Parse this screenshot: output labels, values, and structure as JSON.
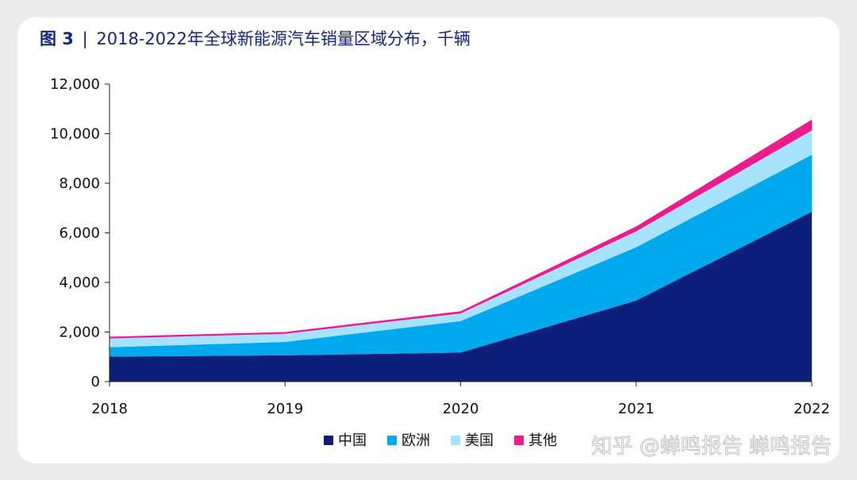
{
  "title": {
    "figure_label": "图 3",
    "separator": "|",
    "text": "2018-2022年全球新能源汽车销量区域分布，千辆"
  },
  "chart_data": {
    "type": "area",
    "stacked": true,
    "x": [
      "2018",
      "2019",
      "2020",
      "2021",
      "2022"
    ],
    "ylim": [
      0,
      12000
    ],
    "yticks": [
      0,
      2000,
      4000,
      6000,
      8000,
      10000,
      12000
    ],
    "ytick_labels": [
      "0",
      "2,000",
      "4,000",
      "6,000",
      "8,000",
      "10,000",
      "12,000"
    ],
    "series": [
      {
        "name": "中国",
        "color": "#0c1f7a",
        "values": [
          1010,
          1060,
          1170,
          3270,
          6850
        ]
      },
      {
        "name": "欧洲",
        "color": "#00a9ee",
        "values": [
          380,
          540,
          1270,
          2150,
          2300
        ]
      },
      {
        "name": "美国",
        "color": "#a6e3fb",
        "values": [
          350,
          330,
          310,
          640,
          980
        ]
      },
      {
        "name": "其他",
        "color": "#ec1c8c",
        "values": [
          70,
          70,
          90,
          200,
          440
        ]
      }
    ],
    "legend_position": "bottom-right"
  },
  "watermark": "知乎 @蝉鸣报告 蝉鸣报告"
}
